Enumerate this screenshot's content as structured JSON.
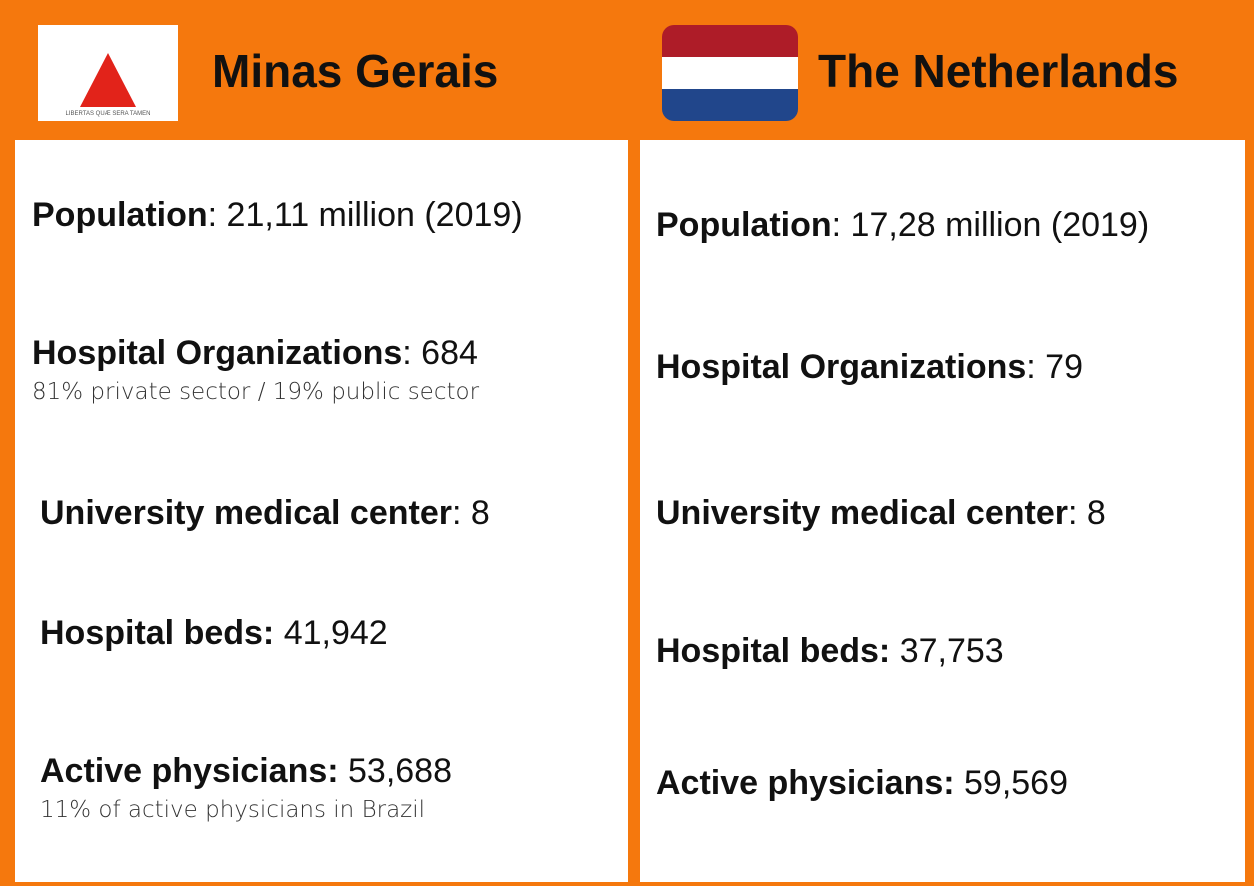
{
  "left": {
    "title": "Minas Gerais",
    "emblem_text": "LIBERTAS QUÆ SERA TAMEN",
    "rows": [
      {
        "label": "Population",
        "value": ": 21,11 million (2019)"
      },
      {
        "label": "Hospital Organizations",
        "value": ": 684",
        "note": "81% private sector / 19% public sector"
      },
      {
        "label": "University medical center",
        "value": ": 8"
      },
      {
        "label": "Hospital beds:",
        "value": " 41,942"
      },
      {
        "label": "Active physicians:",
        "value": " 53,688",
        "note": "11% of active physicians in Brazil"
      }
    ]
  },
  "right": {
    "title": "The Netherlands",
    "rows": [
      {
        "label": "Population",
        "value": ": 17,28 million (2019)"
      },
      {
        "label": "Hospital Organizations",
        "value": ": 79"
      },
      {
        "label": "University medical center",
        "value": ": 8"
      },
      {
        "label": "Hospital beds:",
        "value": " 37,753"
      },
      {
        "label": "Active physicians:",
        "value": " 59,569"
      }
    ]
  }
}
